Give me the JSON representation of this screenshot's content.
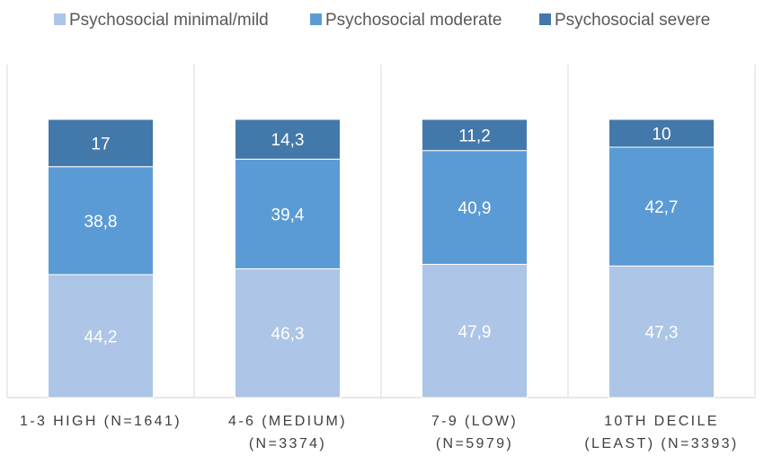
{
  "chart_data": {
    "type": "bar",
    "stacked": true,
    "percent_stacked": true,
    "categories": [
      [
        "1-3 HIGH (N=1641)"
      ],
      [
        "4-6 (MEDIUM)",
        "(N=3374)"
      ],
      [
        "7-9 (LOW)",
        "(N=5979)"
      ],
      [
        "10TH DECILE",
        "(LEAST) (N=3393)"
      ]
    ],
    "series": [
      {
        "name": "Psychosocial minimal/mild",
        "values": [
          44.2,
          46.3,
          47.9,
          47.3
        ],
        "labels": [
          "44,2",
          "46,3",
          "47,9",
          "47,3"
        ],
        "color": "#adc5e6"
      },
      {
        "name": "Psychosocial moderate",
        "values": [
          38.8,
          39.4,
          40.9,
          42.7
        ],
        "labels": [
          "38,8",
          "39,4",
          "40,9",
          "42,7"
        ],
        "color": "#5b9bd5"
      },
      {
        "name": "Psychosocial severe",
        "values": [
          17,
          14.3,
          11.2,
          10
        ],
        "labels": [
          "17",
          "14,3",
          "11,2",
          "10"
        ],
        "color": "#4378ab"
      }
    ],
    "ylim": [
      0,
      100
    ],
    "legend_position": "top",
    "grid": "vertical category separators",
    "data_label_color": "#ffffff",
    "axis_label_color": "#404040"
  }
}
